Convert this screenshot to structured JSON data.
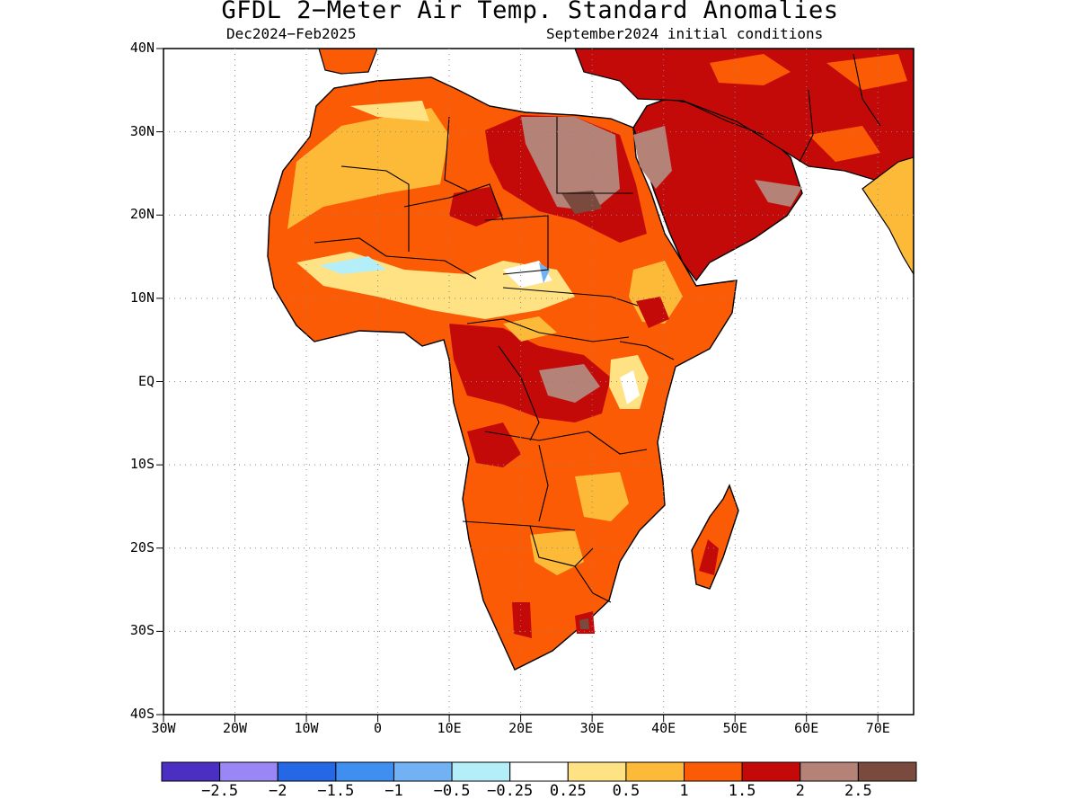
{
  "title": "GFDL 2−Meter Air Temp. Standard Anomalies",
  "subtitle_left": "Dec2024−Feb2025",
  "subtitle_right": "September2024 initial conditions",
  "lat_labels": [
    "40N",
    "30N",
    "20N",
    "10N",
    "EQ",
    "10S",
    "20S",
    "30S",
    "40S"
  ],
  "lon_labels": [
    "30W",
    "20W",
    "10W",
    "0",
    "10E",
    "20E",
    "30E",
    "40E",
    "50E",
    "60E",
    "70E"
  ],
  "map_extent": {
    "lon_min": -30,
    "lon_max": 75,
    "lat_min": -40,
    "lat_max": 40
  },
  "grid": "dotted",
  "colorbar": {
    "colors": [
      "#4a2fc2",
      "#9a87f5",
      "#2568e6",
      "#3f8ff0",
      "#72b2f4",
      "#b3eef9",
      "#ffffff",
      "#ffe284",
      "#fdba39",
      "#fc5b05",
      "#c40a09",
      "#b58278",
      "#7a4a3f"
    ],
    "labels": [
      "−2.5",
      "−2",
      "−1.5",
      "−1",
      "−0.5",
      "−0.25",
      "0.25",
      "0.5",
      "1",
      "1.5",
      "2",
      "2.5"
    ]
  }
}
